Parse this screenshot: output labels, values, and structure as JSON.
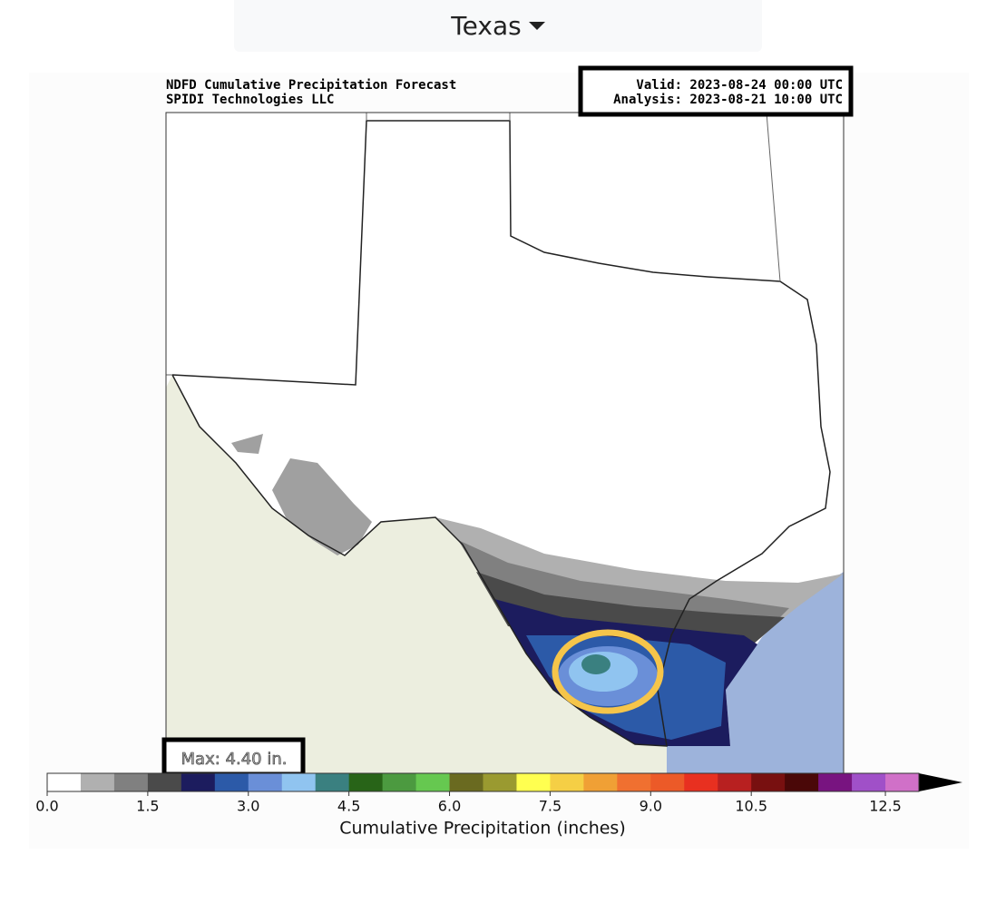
{
  "dropdown": {
    "label": "Texas"
  },
  "figure": {
    "title_lines": [
      "NDFD Cumulative Precipitation Forecast",
      "SPIDI Technologies LLC"
    ],
    "valid": "Valid: 2023-08-24 00:00 UTC",
    "analysis": "Analysis: 2023-08-21 10:00 UTC",
    "max_label": "Max: 4.40 in.",
    "colorbar": {
      "label": "Cumulative Precipitation (inches)",
      "lim": [
        0,
        13
      ],
      "ticks": [
        {
          "value": 0,
          "label": "0.0"
        },
        {
          "value": 1.5,
          "label": "1.5"
        },
        {
          "value": 3,
          "label": "3.0"
        },
        {
          "value": 4.5,
          "label": "4.5"
        },
        {
          "value": 6,
          "label": "6.0"
        },
        {
          "value": 7.5,
          "label": "7.5"
        },
        {
          "value": 9,
          "label": "9.0"
        },
        {
          "value": 10.5,
          "label": "10.5"
        },
        {
          "value": 12.5,
          "label": "12.5"
        }
      ],
      "colors": [
        "#ffffff",
        "#b0b0b0",
        "#808080",
        "#4a4a4a",
        "#1c1c5e",
        "#2c5aa8",
        "#6a8fd8",
        "#90c4f0",
        "#3a8080",
        "#286418",
        "#4c9a40",
        "#66c850",
        "#6a6a20",
        "#9a9a30",
        "#ffff50",
        "#f5cf45",
        "#f0a035",
        "#f07030",
        "#ec5a28",
        "#e83020",
        "#b82020",
        "#781010",
        "#4a0808",
        "#781480",
        "#a050c8",
        "#d070c8"
      ],
      "extend_color": "#000000"
    }
  }
}
